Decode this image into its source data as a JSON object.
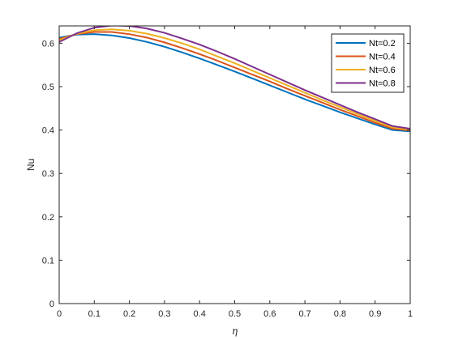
{
  "chart_data": {
    "type": "line",
    "title": "",
    "xlabel": "η",
    "ylabel": "Nu",
    "xlim": [
      0,
      1
    ],
    "ylim": [
      0,
      0.64
    ],
    "xticks": [
      0,
      0.1,
      0.2,
      0.3,
      0.4,
      0.5,
      0.6,
      0.7,
      0.8,
      0.9,
      1
    ],
    "xtick_labels": [
      "0",
      "0.1",
      "0.2",
      "0.3",
      "0.4",
      "0.5",
      "0.6",
      "0.7",
      "0.8",
      "0.9",
      "1"
    ],
    "yticks": [
      0,
      0.1,
      0.2,
      0.3,
      0.4,
      0.5,
      0.6
    ],
    "ytick_labels": [
      "0",
      "0.1",
      "0.2",
      "0.3",
      "0.4",
      "0.5",
      "0.6"
    ],
    "grid": false,
    "legend_position": "top-right",
    "x": [
      0,
      0.05,
      0.1,
      0.15,
      0.2,
      0.25,
      0.3,
      0.35,
      0.4,
      0.45,
      0.5,
      0.55,
      0.6,
      0.65,
      0.7,
      0.75,
      0.8,
      0.85,
      0.9,
      0.95,
      1
    ],
    "series": [
      {
        "name": "Nt=0.2",
        "color": "#0072BD",
        "values": [
          0.613,
          0.62,
          0.621,
          0.618,
          0.612,
          0.603,
          0.592,
          0.579,
          0.565,
          0.55,
          0.535,
          0.519,
          0.503,
          0.487,
          0.471,
          0.456,
          0.441,
          0.427,
          0.413,
          0.4,
          0.397
        ]
      },
      {
        "name": "Nt=0.4",
        "color": "#D95319",
        "values": [
          0.61,
          0.621,
          0.626,
          0.626,
          0.621,
          0.613,
          0.602,
          0.589,
          0.575,
          0.56,
          0.544,
          0.528,
          0.512,
          0.495,
          0.479,
          0.463,
          0.447,
          0.432,
          0.417,
          0.403,
          0.399
        ]
      },
      {
        "name": "Nt=0.6",
        "color": "#EDB120",
        "values": [
          0.607,
          0.622,
          0.63,
          0.632,
          0.629,
          0.622,
          0.612,
          0.6,
          0.586,
          0.57,
          0.554,
          0.537,
          0.52,
          0.503,
          0.486,
          0.469,
          0.453,
          0.437,
          0.421,
          0.406,
          0.401
        ]
      },
      {
        "name": "Nt=0.8",
        "color": "#7E2F8E",
        "values": [
          0.603,
          0.623,
          0.636,
          0.641,
          0.64,
          0.634,
          0.624,
          0.611,
          0.597,
          0.581,
          0.564,
          0.546,
          0.528,
          0.51,
          0.492,
          0.475,
          0.458,
          0.441,
          0.425,
          0.409,
          0.403
        ]
      }
    ]
  }
}
